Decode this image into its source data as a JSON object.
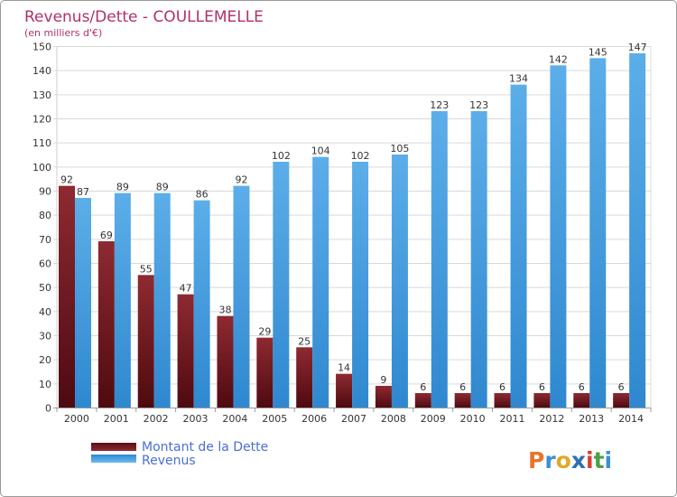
{
  "chart_data": {
    "type": "bar",
    "title": "Revenus/Dette - COULLEMELLE",
    "subtitle": "(en milliers d'€)",
    "categories": [
      "2000",
      "2001",
      "2002",
      "2003",
      "2004",
      "2005",
      "2006",
      "2007",
      "2008",
      "2009",
      "2010",
      "2011",
      "2012",
      "2013",
      "2014"
    ],
    "series": [
      {
        "name": "Montant de la Dette",
        "color": "#7a1c22",
        "values": [
          92,
          69,
          55,
          47,
          38,
          29,
          25,
          14,
          9,
          6,
          6,
          6,
          6,
          6,
          6
        ]
      },
      {
        "name": "Revenus",
        "color": "#4ca3e3",
        "values": [
          87,
          89,
          89,
          86,
          92,
          102,
          104,
          102,
          105,
          123,
          123,
          134,
          142,
          145,
          147
        ]
      }
    ],
    "yticks": [
      0,
      10,
      20,
      30,
      40,
      50,
      60,
      70,
      80,
      90,
      100,
      110,
      120,
      130,
      140,
      150
    ],
    "ylim": [
      0,
      150
    ],
    "grid": "horizontal",
    "legend_position": "bottom-left"
  },
  "logo_text": "Proxiti"
}
